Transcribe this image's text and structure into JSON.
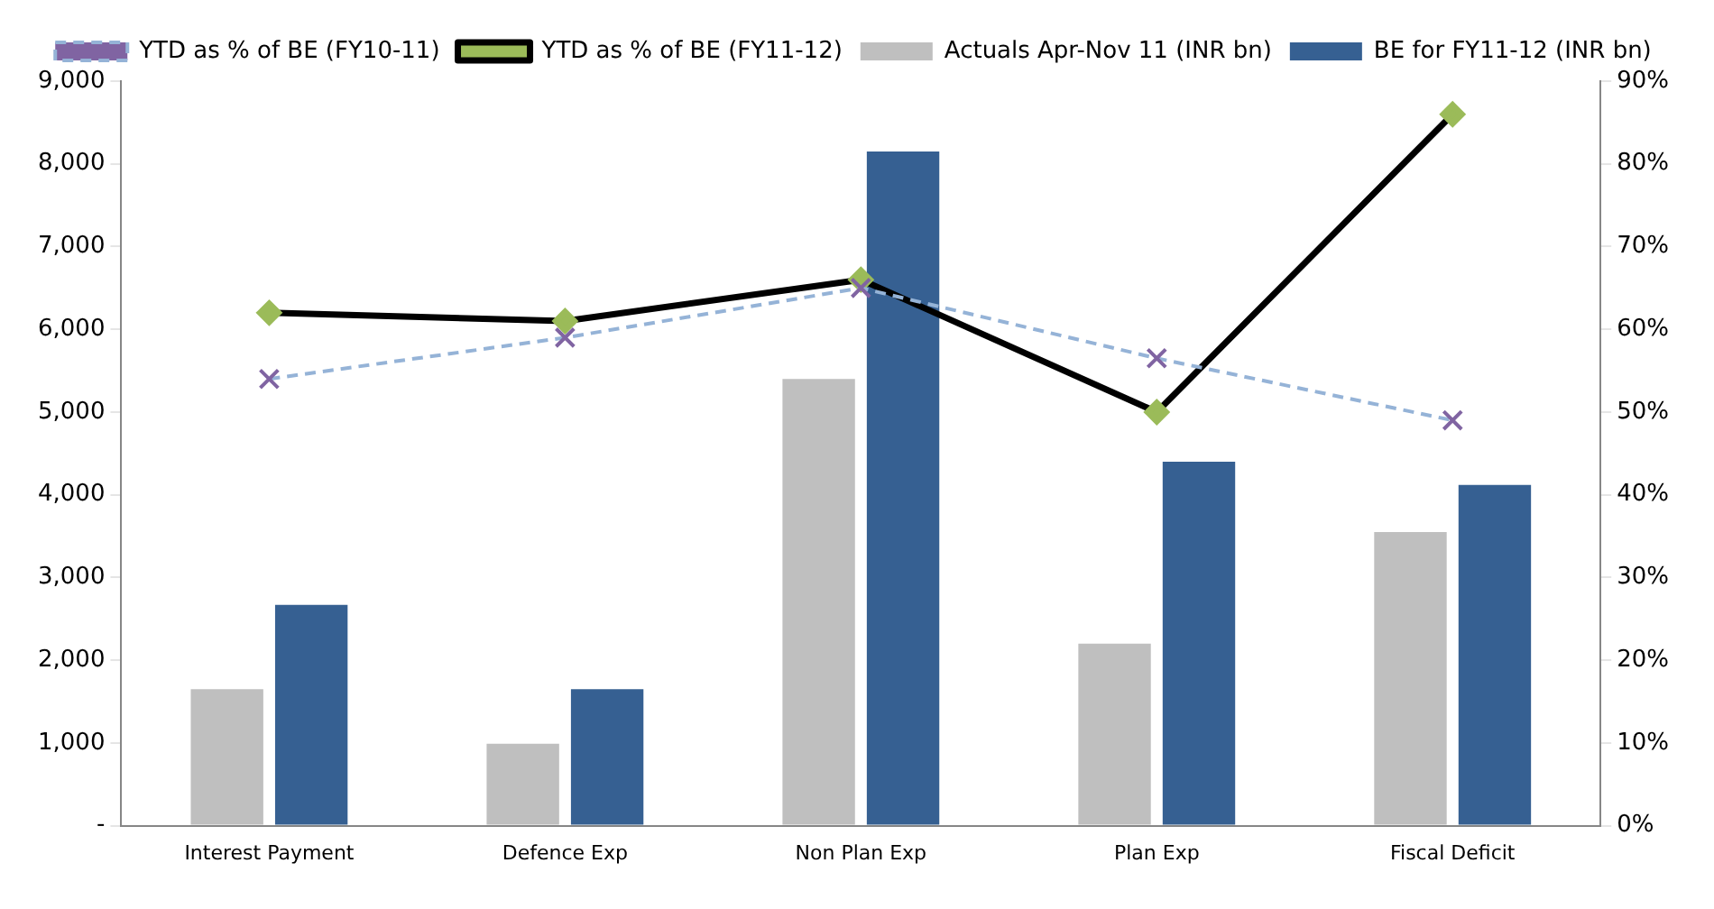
{
  "chart_data": {
    "type": "bar",
    "categories": [
      "Interest Payment",
      "Defence Exp",
      "Non Plan Exp",
      "Plan Exp",
      "Fiscal Deficit"
    ],
    "series": [
      {
        "name": "Actuals Apr-Nov 11 (INR bn)",
        "color": "#bfbfbf",
        "values": [
          1650,
          990,
          5400,
          2200,
          3550
        ]
      },
      {
        "name": "BE for FY11-12 (INR bn)",
        "color": "#366092",
        "values": [
          2670,
          1650,
          8150,
          4400,
          4120
        ]
      },
      {
        "name": "YTD as % of BE (FY11-12)",
        "type": "line",
        "axis": "y2",
        "color": "#000000",
        "marker": "diamond",
        "line_style": "solid",
        "values": [
          62,
          61,
          66,
          50,
          86
        ]
      },
      {
        "name": "YTD as % of BE (FY10-11)",
        "type": "line",
        "axis": "y2",
        "color": "#95b3d7",
        "marker": "cross",
        "line_style": "dashed",
        "values": [
          54,
          59,
          65,
          56.5,
          49
        ]
      }
    ],
    "ylim": [
      0,
      9000
    ],
    "yticks": [
      {
        "value": 0,
        "label": "-"
      },
      {
        "value": 1000,
        "label": "1,000"
      },
      {
        "value": 2000,
        "label": "2,000"
      },
      {
        "value": 3000,
        "label": "3,000"
      },
      {
        "value": 4000,
        "label": "4,000"
      },
      {
        "value": 5000,
        "label": "5,000"
      },
      {
        "value": 6000,
        "label": "6,000"
      },
      {
        "value": 7000,
        "label": "7,000"
      },
      {
        "value": 8000,
        "label": "8,000"
      },
      {
        "value": 9000,
        "label": "9,000"
      }
    ],
    "y2lim": [
      0,
      90
    ],
    "y2ticks": [
      {
        "value": 0,
        "label": "0%"
      },
      {
        "value": 10,
        "label": "10%"
      },
      {
        "value": 20,
        "label": "20%"
      },
      {
        "value": 30,
        "label": "30%"
      },
      {
        "value": 40,
        "label": "40%"
      },
      {
        "value": 50,
        "label": "50%"
      },
      {
        "value": 60,
        "label": "60%"
      },
      {
        "value": 70,
        "label": "70%"
      },
      {
        "value": 80,
        "label": "80%"
      },
      {
        "value": 90,
        "label": "90%"
      }
    ],
    "grid": false,
    "legend": "top"
  }
}
